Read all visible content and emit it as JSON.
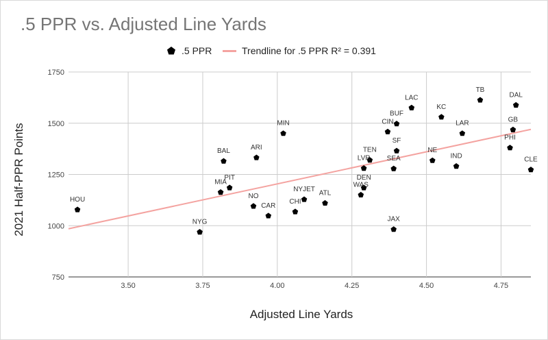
{
  "chart_data": {
    "type": "scatter",
    "title": ".5 PPR vs. Adjusted Line Yards",
    "xlabel": "Adjusted Line Yards",
    "ylabel": "2021 Half-PPR Points",
    "xlim": [
      3.3,
      4.85
    ],
    "ylim": [
      750,
      1750
    ],
    "x_ticks": [
      "3.50",
      "3.75",
      "4.00",
      "4.25",
      "4.50",
      "4.75"
    ],
    "y_ticks": [
      "750",
      "1000",
      "1250",
      "1500",
      "1750"
    ],
    "grid": true,
    "legend_position": "top",
    "series": [
      {
        "name": ".5 PPR",
        "marker": "pentagon",
        "color": "#000000",
        "points": [
          {
            "label": "HOU",
            "x": 3.33,
            "y": 1078
          },
          {
            "label": "NYG",
            "x": 3.74,
            "y": 969
          },
          {
            "label": "BAL",
            "x": 3.82,
            "y": 1315
          },
          {
            "label": "MIA",
            "x": 3.81,
            "y": 1163
          },
          {
            "label": "PIT",
            "x": 3.84,
            "y": 1185
          },
          {
            "label": "ARI",
            "x": 3.93,
            "y": 1332
          },
          {
            "label": "NO",
            "x": 3.92,
            "y": 1095
          },
          {
            "label": "CAR",
            "x": 3.97,
            "y": 1048
          },
          {
            "label": "MIN",
            "x": 4.02,
            "y": 1450
          },
          {
            "label": "NYJET",
            "x": 4.09,
            "y": 1128
          },
          {
            "label": "CHI",
            "x": 4.06,
            "y": 1068
          },
          {
            "label": "ATL",
            "x": 4.16,
            "y": 1110
          },
          {
            "label": "TEN",
            "x": 4.31,
            "y": 1320
          },
          {
            "label": "LVR",
            "x": 4.29,
            "y": 1280
          },
          {
            "label": "DEN",
            "x": 4.29,
            "y": 1185
          },
          {
            "label": "WAS",
            "x": 4.28,
            "y": 1150
          },
          {
            "label": "JAX",
            "x": 4.39,
            "y": 982
          },
          {
            "label": "CIN",
            "x": 4.37,
            "y": 1458
          },
          {
            "label": "BUF",
            "x": 4.4,
            "y": 1497
          },
          {
            "label": "SF",
            "x": 4.4,
            "y": 1365
          },
          {
            "label": "SEA",
            "x": 4.39,
            "y": 1278
          },
          {
            "label": "LAC",
            "x": 4.45,
            "y": 1575
          },
          {
            "label": "NE",
            "x": 4.52,
            "y": 1318
          },
          {
            "label": "KC",
            "x": 4.55,
            "y": 1530
          },
          {
            "label": "LAR",
            "x": 4.62,
            "y": 1450
          },
          {
            "label": "IND",
            "x": 4.6,
            "y": 1290
          },
          {
            "label": "TB",
            "x": 4.68,
            "y": 1613
          },
          {
            "label": "DAL",
            "x": 4.8,
            "y": 1588
          },
          {
            "label": "GB",
            "x": 4.79,
            "y": 1468
          },
          {
            "label": "PHI",
            "x": 4.78,
            "y": 1380
          },
          {
            "label": "CLE",
            "x": 4.85,
            "y": 1273
          }
        ]
      }
    ],
    "trendline": {
      "name": "Trendline for .5 PPR R² = 0.391",
      "color": "#f4a3a0",
      "start": {
        "x": 3.3,
        "y": 985
      },
      "end": {
        "x": 4.85,
        "y": 1470
      }
    }
  }
}
